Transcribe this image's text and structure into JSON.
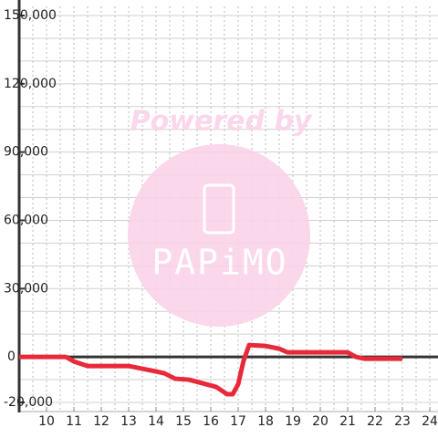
{
  "chart_data": {
    "type": "line",
    "watermark": [
      "Powered by",
      "PAPiMO"
    ],
    "x": [
      9,
      10.7,
      11,
      11.5,
      13,
      13.5,
      14,
      14.3,
      14.7,
      15.2,
      15.7,
      16.2,
      16.6,
      16.8,
      17,
      17.2,
      17.4,
      18,
      18.5,
      18.8,
      21,
      21.3,
      21.6,
      23
    ],
    "series": [
      {
        "color": "#e8293a",
        "values": [
          0,
          0,
          -2000,
          -4000,
          -4000,
          -5200,
          -6400,
          -7200,
          -9600,
          -10000,
          -11600,
          -13200,
          -16400,
          -16400,
          -12000,
          -1600,
          5200,
          4800,
          3600,
          2000,
          2000,
          0,
          -800,
          -800
        ]
      }
    ],
    "xlim": [
      9,
      24.3
    ],
    "ylim": [
      -20000,
      150000
    ],
    "xticks": [
      10,
      11,
      12,
      13,
      14,
      15,
      16,
      17,
      18,
      19,
      20,
      21,
      22,
      23,
      24
    ],
    "yticks": [
      {
        "value": -20000,
        "label": "-20,000"
      },
      0,
      {
        "value": 30000,
        "label": "30,000"
      },
      {
        "value": 60000,
        "label": "60,000"
      },
      {
        "value": 90000,
        "label": "90,000"
      },
      {
        "value": 120000,
        "label": "120,000"
      },
      {
        "value": 150000,
        "label": "150,000"
      }
    ],
    "minor_xticks": [
      9.5,
      10,
      10.5,
      11,
      11.5,
      12,
      12.5,
      13,
      13.5,
      14,
      14.5,
      15,
      15.5,
      16,
      16.5,
      17,
      17.5,
      18,
      18.5,
      19,
      19.5,
      20,
      20.5,
      21,
      21.5,
      22,
      22.5,
      23,
      23.5,
      24
    ],
    "minor_yticks": [
      -20000,
      -10000,
      10000,
      20000,
      30000,
      40000,
      50000,
      60000,
      70000,
      80000,
      90000,
      100000,
      110000,
      120000,
      130000,
      140000,
      150000
    ],
    "grid": true
  }
}
